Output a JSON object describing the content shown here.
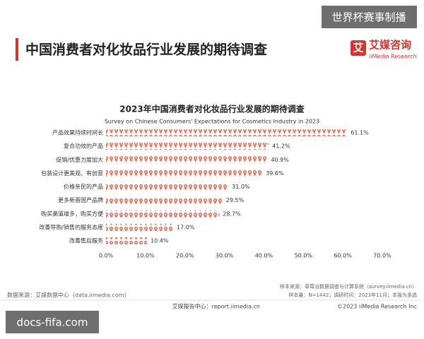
{
  "header": {
    "title": "中国消费者对化妆品行业发展的期待调查"
  },
  "logo": {
    "icon": "艾",
    "name": "艾媒咨询",
    "sub": "iiMedia Research"
  },
  "watermarks": {
    "top": "世界杯赛事制播",
    "bottom": "docs-fifa.com"
  },
  "chart_data": {
    "type": "bar",
    "orientation": "horizontal",
    "title": "2023年中国消费者对化妆品行业发展的期待调查",
    "subtitle": "Survey on Chinese Consumers' Expectations for Cosmetics Industry in 2023",
    "categories": [
      "产品效果持续时间长",
      "复合功效的产品",
      "促销/优惠力度加大",
      "包装设计更美观、有创意",
      "价格亲民的产品",
      "更多新晋国产品牌",
      "购买渠道增多，购买方便",
      "改善导购/销售的服务态度",
      "改善售后服务"
    ],
    "values": [
      61.1,
      41.2,
      40.9,
      39.6,
      31.0,
      29.5,
      28.7,
      17.0,
      10.4
    ],
    "value_labels": [
      "61.1%",
      "41.2%",
      "40.9%",
      "39.6%",
      "31.0%",
      "29.5%",
      "28.7%",
      "17.0%",
      "10.4%"
    ],
    "color": "#e8735e",
    "xlim": [
      0,
      70
    ],
    "xticks": [
      {
        "value": 0,
        "label": "0.0%"
      },
      {
        "value": 10,
        "label": "10.0%"
      },
      {
        "value": 20,
        "label": "20.0%"
      },
      {
        "value": 30,
        "label": "30.0%"
      },
      {
        "value": 40,
        "label": "40.0%"
      },
      {
        "value": 50,
        "label": "50.0%"
      },
      {
        "value": 60,
        "label": "60.0%"
      },
      {
        "value": 70,
        "label": "70.0%"
      }
    ],
    "grid": false
  },
  "footer": {
    "sample_source": "样本来源：草莓派数据调查与计算系统（survey.iimedia.cn）",
    "sample_info": "样本量：N=1442；调研时间：2023年11月；本报为多选",
    "data_source": "数据来源：艾媒数据中心（data.iimedia.com）",
    "report_center": "艾媒报告中心：report.iimedia.cn",
    "copyright": "©2023  iiMedia Research  Inc"
  }
}
